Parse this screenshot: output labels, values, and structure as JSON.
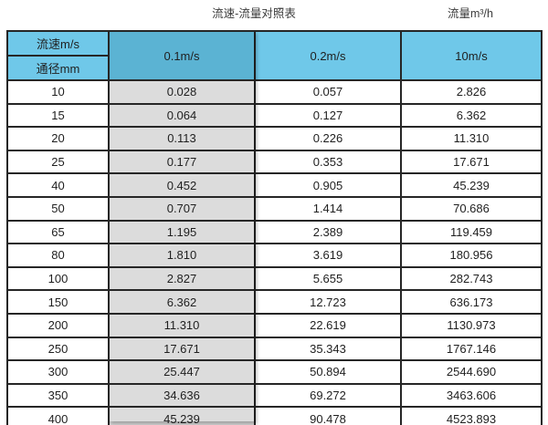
{
  "header": {
    "title": "流速-流量对照表",
    "unit_label": "流量m³/h"
  },
  "table": {
    "corner_top": "流速m/s",
    "corner_bottom": "通径mm",
    "velocity_columns": [
      "0.1m/s",
      "0.2m/s",
      "10m/s"
    ],
    "rows": [
      {
        "dn": "10",
        "values": [
          "0.028",
          "0.057",
          "2.826"
        ]
      },
      {
        "dn": "15",
        "values": [
          "0.064",
          "0.127",
          "6.362"
        ]
      },
      {
        "dn": "20",
        "values": [
          "0.113",
          "0.226",
          "11.310"
        ]
      },
      {
        "dn": "25",
        "values": [
          "0.177",
          "0.353",
          "17.671"
        ]
      },
      {
        "dn": "40",
        "values": [
          "0.452",
          "0.905",
          "45.239"
        ]
      },
      {
        "dn": "50",
        "values": [
          "0.707",
          "1.414",
          "70.686"
        ]
      },
      {
        "dn": "65",
        "values": [
          "1.195",
          "2.389",
          "119.459"
        ]
      },
      {
        "dn": "80",
        "values": [
          "1.810",
          "3.619",
          "180.956"
        ]
      },
      {
        "dn": "100",
        "values": [
          "2.827",
          "5.655",
          "282.743"
        ]
      },
      {
        "dn": "150",
        "values": [
          "6.362",
          "12.723",
          "636.173"
        ]
      },
      {
        "dn": "200",
        "values": [
          "11.310",
          "22.619",
          "1130.973"
        ]
      },
      {
        "dn": "250",
        "values": [
          "17.671",
          "35.343",
          "1767.146"
        ]
      },
      {
        "dn": "300",
        "values": [
          "25.447",
          "50.894",
          "2544.690"
        ]
      },
      {
        "dn": "350",
        "values": [
          "34.636",
          "69.272",
          "3463.606"
        ]
      },
      {
        "dn": "400",
        "values": [
          "45.239",
          "90.478",
          "4523.893"
        ]
      }
    ]
  },
  "colors": {
    "header-blue": "#6FC8E9",
    "header-blue-dark": "#5BB3D3",
    "column-gray": "#DCDCDC",
    "border-dark": "#262626"
  },
  "chart_data": {
    "type": "table",
    "title": "流速-流量对照表",
    "unit": "流量m³/h",
    "columns": [
      "通径mm",
      "0.1m/s",
      "0.2m/s",
      "10m/s"
    ],
    "rows": [
      [
        10,
        0.028,
        0.057,
        2.826
      ],
      [
        15,
        0.064,
        0.127,
        6.362
      ],
      [
        20,
        0.113,
        0.226,
        11.31
      ],
      [
        25,
        0.177,
        0.353,
        17.671
      ],
      [
        40,
        0.452,
        0.905,
        45.239
      ],
      [
        50,
        0.707,
        1.414,
        70.686
      ],
      [
        65,
        1.195,
        2.389,
        119.459
      ],
      [
        80,
        1.81,
        3.619,
        180.956
      ],
      [
        100,
        2.827,
        5.655,
        282.743
      ],
      [
        150,
        6.362,
        12.723,
        636.173
      ],
      [
        200,
        11.31,
        22.619,
        1130.973
      ],
      [
        250,
        17.671,
        35.343,
        1767.146
      ],
      [
        300,
        25.447,
        50.894,
        2544.69
      ],
      [
        350,
        34.636,
        69.272,
        3463.606
      ],
      [
        400,
        45.239,
        90.478,
        4523.893
      ]
    ]
  }
}
